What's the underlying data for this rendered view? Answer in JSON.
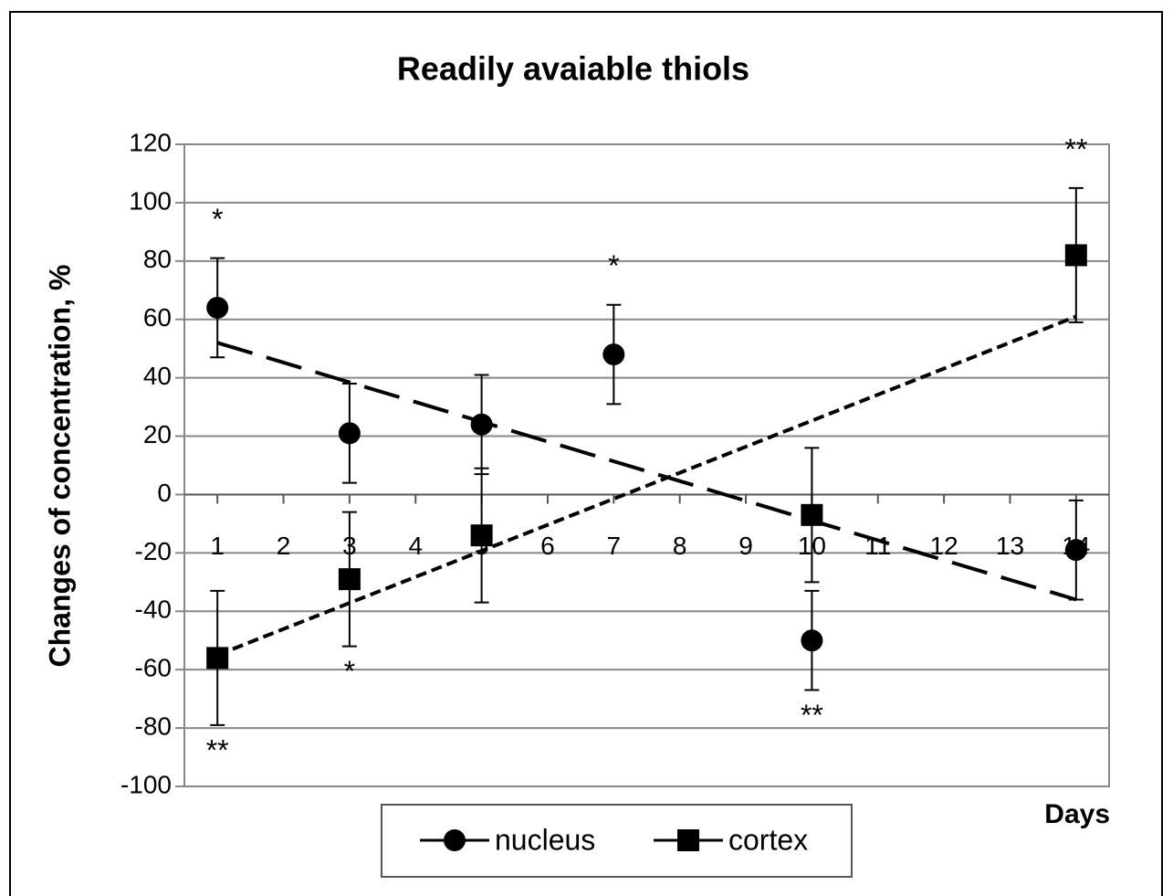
{
  "chart_data": {
    "type": "scatter",
    "title": "Readily avaiable thiols",
    "ylabel": "Changes of concentration,  %",
    "xlabel": "Days",
    "xlim": [
      0.5,
      14.5
    ],
    "xticks": [
      1,
      2,
      3,
      4,
      5,
      6,
      7,
      8,
      9,
      10,
      11,
      12,
      13,
      14
    ],
    "ylim": [
      -100,
      120
    ],
    "yticks": [
      -100,
      -80,
      -60,
      -40,
      -20,
      0,
      20,
      40,
      60,
      80,
      100,
      120
    ],
    "grid": true,
    "legend": "bottom",
    "series": [
      {
        "name": "nucleus",
        "color": "#000000",
        "marker": "circle",
        "x": [
          1,
          3,
          5,
          7,
          10,
          14
        ],
        "values": [
          64,
          21,
          24,
          48,
          -50,
          -19
        ],
        "errors": [
          17,
          17,
          17,
          17,
          17,
          17
        ],
        "annotations": [
          "*",
          null,
          null,
          "*",
          "**",
          null
        ],
        "trend": {
          "x": [
            1,
            14
          ],
          "y": [
            52,
            -36
          ],
          "dash": "long"
        }
      },
      {
        "name": "cortex",
        "color": "#000000",
        "marker": "square",
        "x": [
          1,
          3,
          5,
          10,
          14
        ],
        "values": [
          -56,
          -29,
          -14,
          -7,
          82
        ],
        "errors": [
          23,
          23,
          23,
          23,
          23
        ],
        "annotations": [
          "**",
          "*",
          null,
          null,
          "**"
        ],
        "trend": {
          "x": [
            1,
            14
          ],
          "y": [
            -55,
            61
          ],
          "dash": "short"
        }
      }
    ]
  }
}
